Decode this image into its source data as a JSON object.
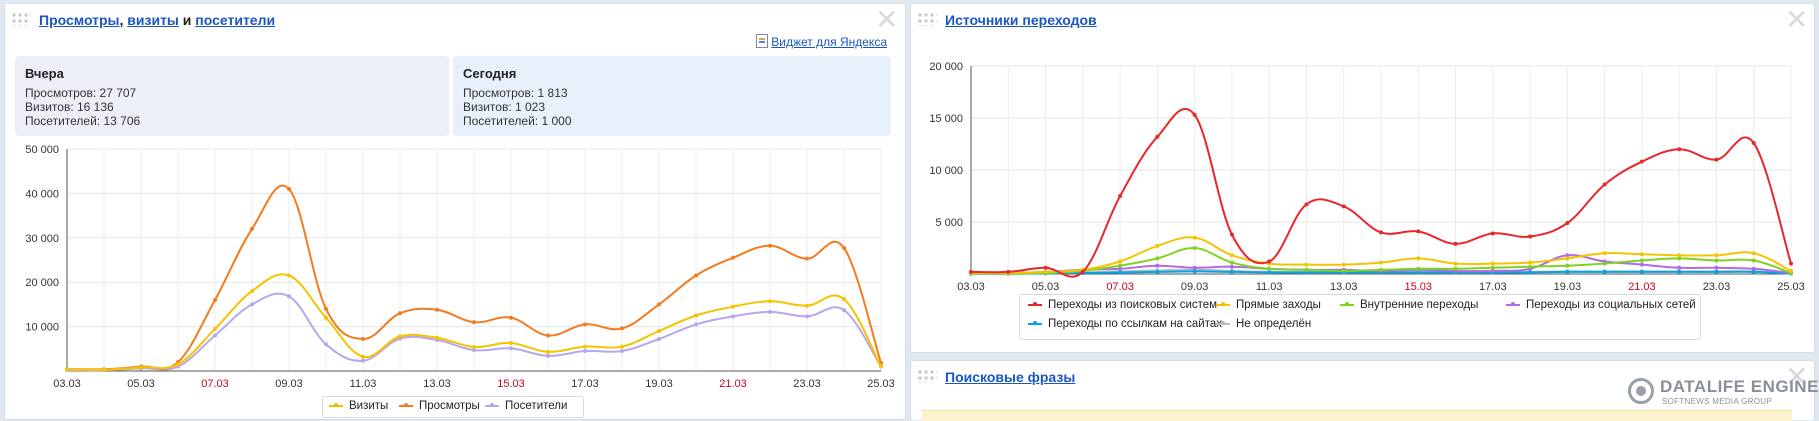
{
  "left_panel": {
    "title_link1": "Просмотры",
    "title_sep": ", ",
    "title_link2": "визиты",
    "title_and": " и ",
    "title_link3": "посетители",
    "close_glyph": "✕",
    "widget_link": "Виджет для Яндекса",
    "yesterday": {
      "heading": "Вчера",
      "views": "Просмотров: 27 707",
      "visits": "Визитов: 16 136",
      "visitors": "Посетителей: 13 706"
    },
    "today": {
      "heading": "Сегодня",
      "views": "Просмотров: 1 813",
      "visits": "Визитов: 1 023",
      "visitors": "Посетителей: 1 000"
    }
  },
  "right_panel": {
    "title_link": "Источники переходов",
    "close_glyph": "✕"
  },
  "bottom_panel": {
    "title_link": "Поисковые фразы",
    "close_glyph": "✕"
  },
  "watermark": {
    "line1": "DATALIFE ENGINE",
    "line2": "SOFTNEWS MEDIA GROUP"
  },
  "chart_data": [
    {
      "type": "line",
      "x": [
        "03.03",
        "04.03",
        "05.03",
        "06.03",
        "07.03",
        "08.03",
        "09.03",
        "10.03",
        "11.03",
        "12.03",
        "13.03",
        "14.03",
        "15.03",
        "16.03",
        "17.03",
        "18.03",
        "19.03",
        "20.03",
        "21.03",
        "22.03",
        "23.03",
        "24.03",
        "25.03"
      ],
      "x_ticks": [
        "03.03",
        "05.03",
        "07.03",
        "09.03",
        "11.03",
        "13.03",
        "15.03",
        "17.03",
        "19.03",
        "21.03",
        "23.03",
        "25.03"
      ],
      "x_tick_colors": [
        "#333333",
        "#333333",
        "#d0021b",
        "#333333",
        "#333333",
        "#333333",
        "#d0021b",
        "#333333",
        "#333333",
        "#d0021b",
        "#333333",
        "#333333"
      ],
      "y_ticks": [
        "10 000",
        "20 000",
        "30 000",
        "40 000",
        "50 000"
      ],
      "ylim": [
        0,
        50000
      ],
      "grid": true,
      "legend_position": "bottom",
      "series": [
        {
          "name": "Визиты",
          "color": "#f5c400",
          "values": [
            300,
            300,
            800,
            1500,
            9500,
            18000,
            21500,
            12000,
            3200,
            7800,
            7500,
            5400,
            6300,
            4300,
            5500,
            5500,
            9000,
            12500,
            14500,
            15700,
            14700,
            16200,
            1000
          ]
        },
        {
          "name": "Просмотры",
          "color": "#f47b20",
          "values": [
            400,
            400,
            1000,
            2000,
            16000,
            32000,
            41000,
            14000,
            7200,
            13000,
            13800,
            11000,
            12000,
            8000,
            10500,
            9600,
            15000,
            21500,
            25500,
            28200,
            25300,
            27700,
            1800
          ]
        },
        {
          "name": "Посетители",
          "color": "#b7a6ef",
          "values": [
            200,
            200,
            600,
            1000,
            8000,
            15000,
            16800,
            6000,
            2300,
            7300,
            7000,
            4700,
            5100,
            3400,
            4500,
            4500,
            7200,
            10500,
            12300,
            13300,
            12300,
            13700,
            1000
          ]
        }
      ]
    },
    {
      "type": "line",
      "x": [
        "03.03",
        "04.03",
        "05.03",
        "06.03",
        "07.03",
        "08.03",
        "09.03",
        "10.03",
        "11.03",
        "12.03",
        "13.03",
        "14.03",
        "15.03",
        "16.03",
        "17.03",
        "18.03",
        "19.03",
        "20.03",
        "21.03",
        "22.03",
        "23.03",
        "24.03",
        "25.03"
      ],
      "x_ticks": [
        "03.03",
        "05.03",
        "07.03",
        "09.03",
        "11.03",
        "13.03",
        "15.03",
        "17.03",
        "19.03",
        "21.03",
        "23.03",
        "25.03"
      ],
      "x_tick_colors": [
        "#333333",
        "#333333",
        "#d0021b",
        "#333333",
        "#333333",
        "#333333",
        "#d0021b",
        "#333333",
        "#333333",
        "#d0021b",
        "#333333",
        "#333333"
      ],
      "y_ticks": [
        "5 000",
        "10 000",
        "15 000",
        "20 000"
      ],
      "ylim": [
        0,
        20000
      ],
      "grid": true,
      "legend_position": "bottom",
      "series": [
        {
          "name": "Переходы из поисковых систем",
          "color": "#e8272c",
          "values": [
            200,
            200,
            600,
            200,
            7500,
            13200,
            15300,
            3800,
            1200,
            6700,
            6500,
            4000,
            4100,
            2900,
            3900,
            3600,
            4900,
            8600,
            10800,
            12000,
            11000,
            12600,
            1000
          ]
        },
        {
          "name": "Прямые заходы",
          "color": "#f5c400",
          "values": [
            100,
            100,
            200,
            400,
            1200,
            2700,
            3500,
            1800,
            1000,
            900,
            900,
            1100,
            1500,
            1000,
            1000,
            1100,
            1500,
            2000,
            1900,
            1800,
            1800,
            2000,
            300
          ]
        },
        {
          "name": "Внутренние переходы",
          "color": "#7ed321",
          "values": [
            50,
            50,
            100,
            300,
            800,
            1500,
            2500,
            1100,
            500,
            400,
            300,
            400,
            500,
            500,
            600,
            700,
            800,
            1000,
            1300,
            1500,
            1300,
            1300,
            100
          ]
        },
        {
          "name": "Переходы из социальных сетей",
          "color": "#b36ae2",
          "values": [
            100,
            100,
            200,
            400,
            500,
            800,
            600,
            700,
            500,
            400,
            400,
            300,
            400,
            300,
            300,
            500,
            1800,
            1200,
            900,
            600,
            600,
            500,
            100
          ]
        },
        {
          "name": "Переходы по ссылкам на сайтах",
          "color": "#00a6e8",
          "values": [
            20,
            20,
            50,
            100,
            150,
            200,
            250,
            200,
            150,
            150,
            150,
            150,
            150,
            150,
            150,
            150,
            200,
            200,
            200,
            200,
            200,
            200,
            50
          ]
        },
        {
          "name": "Не определён",
          "color": "#bbbbbb",
          "values": [
            30,
            30,
            80,
            150,
            250,
            350,
            400,
            300,
            200,
            200,
            200,
            200,
            200,
            200,
            200,
            200,
            250,
            250,
            250,
            250,
            250,
            250,
            50
          ]
        }
      ]
    }
  ]
}
